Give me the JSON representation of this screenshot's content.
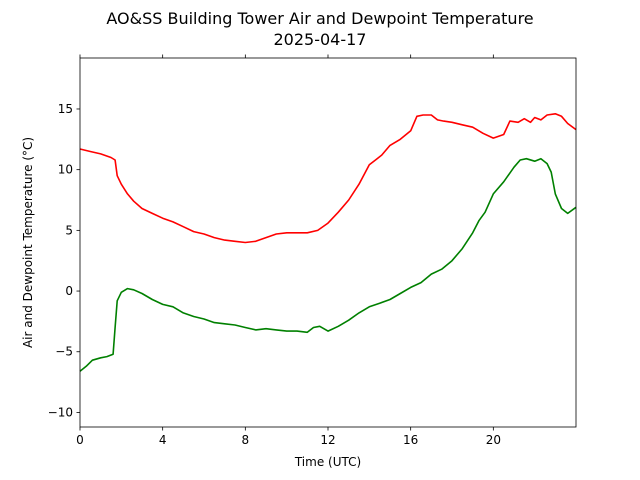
{
  "chart_data": {
    "type": "line",
    "title": "AO&SS Building Tower Air and Dewpoint Temperature",
    "subtitle": "2025-04-17",
    "xlabel": "Time (UTC)",
    "ylabel": "Air and Dewpoint Temperature (°C)",
    "xlim": [
      0,
      24
    ],
    "ylim": [
      -11.2,
      19.2
    ],
    "xticks": [
      0,
      4,
      8,
      12,
      16,
      20
    ],
    "yticks": [
      -10,
      -5,
      0,
      5,
      10,
      15
    ],
    "grid": false,
    "legend": "none",
    "series": [
      {
        "color": "#ff0000",
        "x": [
          0,
          0.5,
          1.0,
          1.5,
          1.7,
          1.8,
          2.0,
          2.3,
          2.6,
          3.0,
          3.5,
          4.0,
          4.5,
          5.0,
          5.5,
          6.0,
          6.5,
          7.0,
          7.5,
          8.0,
          8.5,
          9.0,
          9.5,
          10.0,
          10.5,
          11.0,
          11.5,
          12.0,
          12.5,
          13.0,
          13.5,
          14.0,
          14.3,
          14.6,
          15.0,
          15.5,
          16.0,
          16.3,
          16.6,
          17.0,
          17.3,
          17.6,
          18.0,
          18.5,
          19.0,
          19.5,
          20.0,
          20.5,
          20.8,
          21.2,
          21.5,
          21.8,
          22.0,
          22.3,
          22.6,
          23.0,
          23.3,
          23.6,
          24.0
        ],
        "y": [
          11.7,
          11.5,
          11.3,
          11.0,
          10.8,
          9.5,
          8.8,
          8.0,
          7.4,
          6.8,
          6.4,
          6.0,
          5.7,
          5.3,
          4.9,
          4.7,
          4.4,
          4.2,
          4.1,
          4.0,
          4.1,
          4.4,
          4.7,
          4.8,
          4.8,
          4.8,
          5.0,
          5.6,
          6.5,
          7.5,
          8.8,
          10.4,
          10.8,
          11.2,
          12.0,
          12.5,
          13.2,
          14.4,
          14.5,
          14.5,
          14.1,
          14.0,
          13.9,
          13.7,
          13.5,
          13.0,
          12.6,
          12.9,
          14.0,
          13.9,
          14.2,
          13.9,
          14.3,
          14.1,
          14.5,
          14.6,
          14.4,
          13.8,
          13.3
        ]
      },
      {
        "color": "#008000",
        "x": [
          0,
          0.3,
          0.6,
          1.0,
          1.3,
          1.6,
          1.7,
          1.8,
          2.0,
          2.3,
          2.6,
          3.0,
          3.5,
          4.0,
          4.5,
          5.0,
          5.5,
          6.0,
          6.5,
          7.0,
          7.5,
          8.0,
          8.5,
          9.0,
          9.5,
          10.0,
          10.5,
          11.0,
          11.3,
          11.6,
          12.0,
          12.5,
          13.0,
          13.5,
          14.0,
          14.5,
          15.0,
          15.5,
          16.0,
          16.5,
          17.0,
          17.5,
          18.0,
          18.5,
          19.0,
          19.3,
          19.6,
          20.0,
          20.5,
          21.0,
          21.3,
          21.6,
          22.0,
          22.3,
          22.6,
          22.8,
          23.0,
          23.3,
          23.6,
          24.0
        ],
        "y": [
          -6.6,
          -6.2,
          -5.7,
          -5.5,
          -5.4,
          -5.2,
          -3.0,
          -0.8,
          -0.1,
          0.2,
          0.1,
          -0.2,
          -0.7,
          -1.1,
          -1.3,
          -1.8,
          -2.1,
          -2.3,
          -2.6,
          -2.7,
          -2.8,
          -3.0,
          -3.2,
          -3.1,
          -3.2,
          -3.3,
          -3.3,
          -3.4,
          -3.0,
          -2.9,
          -3.3,
          -2.9,
          -2.4,
          -1.8,
          -1.3,
          -1.0,
          -0.7,
          -0.2,
          0.3,
          0.7,
          1.4,
          1.8,
          2.5,
          3.5,
          4.8,
          5.8,
          6.5,
          8.0,
          9.0,
          10.2,
          10.8,
          10.9,
          10.7,
          10.9,
          10.5,
          9.8,
          8.0,
          6.8,
          6.4,
          6.9
        ]
      }
    ]
  }
}
